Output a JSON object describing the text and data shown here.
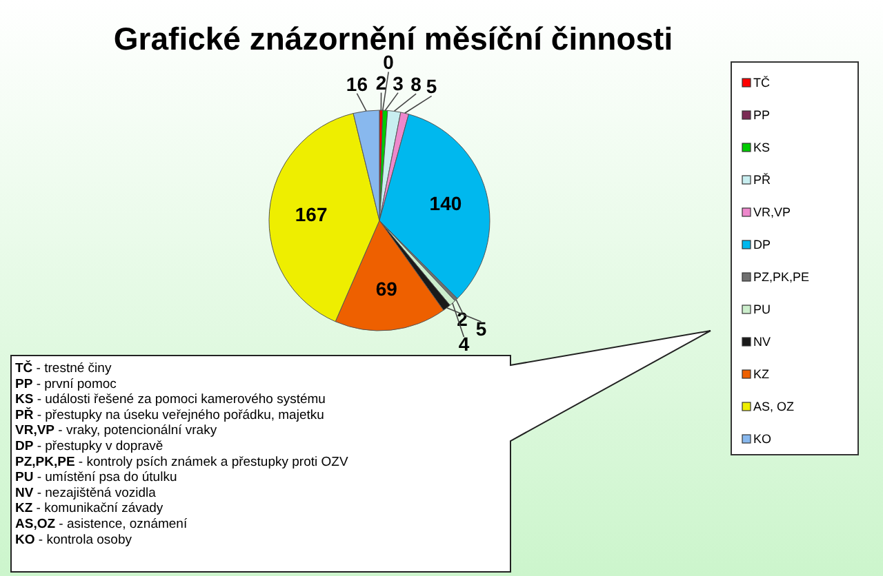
{
  "chart_data": {
    "type": "pie",
    "title": "Grafické znázornění měsíční činnosti",
    "categories": [
      "TČ",
      "PP",
      "KS",
      "PŘ",
      "VR,VP",
      "DP",
      "PZ,PK,PE",
      "PU",
      "NV",
      "KZ",
      "AS, OZ",
      "KO"
    ],
    "values": [
      2,
      0,
      3,
      8,
      5,
      140,
      2,
      4,
      5,
      69,
      167,
      16
    ],
    "colors": [
      "#ff0000",
      "#7b2c55",
      "#00cc00",
      "#c8eef0",
      "#ee88cc",
      "#00b8ee",
      "#707070",
      "#cceecc",
      "#1a1a1a",
      "#ee6000",
      "#eeee00",
      "#88b8ee"
    ],
    "value_labels": [
      "2",
      "0",
      "3",
      "8",
      "5",
      "140",
      "2",
      "4",
      "5",
      "69",
      "167",
      "16"
    ],
    "legend": "right",
    "annotations": [
      "TČ - trestné činy",
      "PP - první pomoc",
      "KS - události řešené za pomoci kamerového systému",
      "PŘ - přestupky na úseku veřejného pořádku, majetku",
      "VR,VP - vraky, potencionální vraky",
      "DP - přestupky v dopravě",
      "PZ,PK,PE - kontroly psích známek a přestupky proti OZV",
      "PU - umístění psa do útulku",
      "NV - nezajištěná vozidla",
      "KZ - komunikační závady",
      "AS,OZ - asistence, oznámení",
      "KO - kontrola osoby"
    ]
  }
}
